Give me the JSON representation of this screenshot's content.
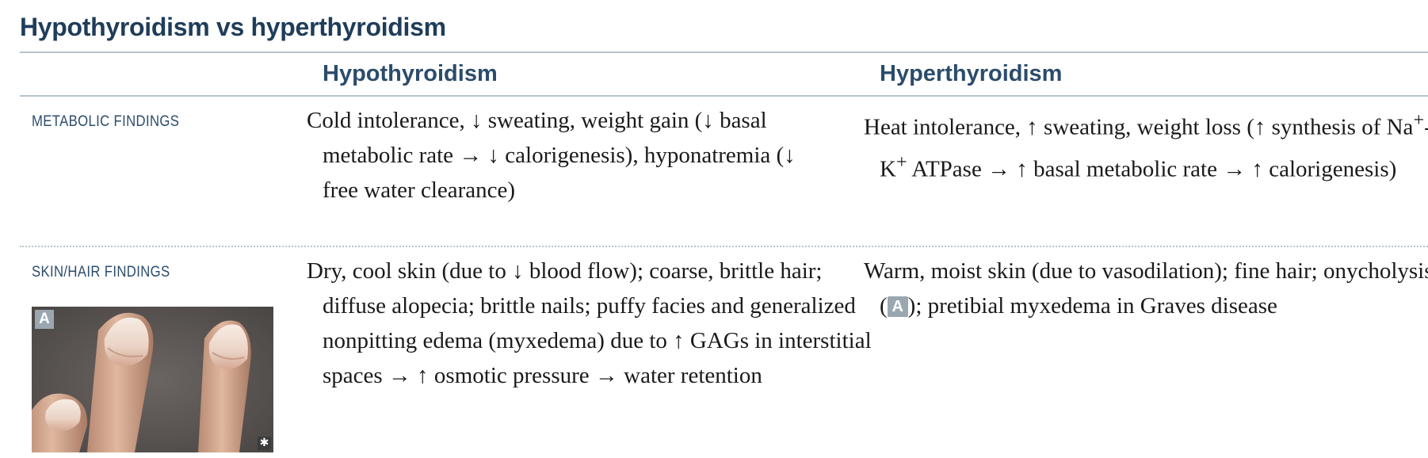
{
  "title": "Hypothyroidism vs hyperthyroidism",
  "columns": {
    "hypo": "Hypothyroidism",
    "hyper": "Hyperthyroidism"
  },
  "rows": [
    {
      "label": "METABOLIC FINDINGS",
      "hypo": "Cold intolerance, ↓ sweating, weight gain (↓ basal metabolic rate → ↓ calorigenesis), hyponatremia (↓ free water clearance)",
      "hyper_html": "Heat intolerance, ↑ sweating, weight loss (↑ synthesis of Na<sup>+</sup>-K<sup>+</sup> ATPase → ↑ basal metabolic rate → ↑ calorigenesis)"
    },
    {
      "label": "SKIN/HAIR FINDINGS",
      "hypo": "Dry, cool skin (due to ↓ blood flow); coarse, brittle hair; diffuse alopecia; brittle nails; puffy facies and generalized nonpitting edema (myxedema) due to ↑ GAGs in interstitial spaces → ↑ osmotic pressure → water retention",
      "hyper_before": "Warm, moist skin (due to vasodilation); fine hair; onycholysis (",
      "hyper_badge": "A",
      "hyper_after": "); pretibial myxedema in Graves disease"
    }
  ],
  "figure": {
    "label": "A",
    "mark": "✱"
  }
}
